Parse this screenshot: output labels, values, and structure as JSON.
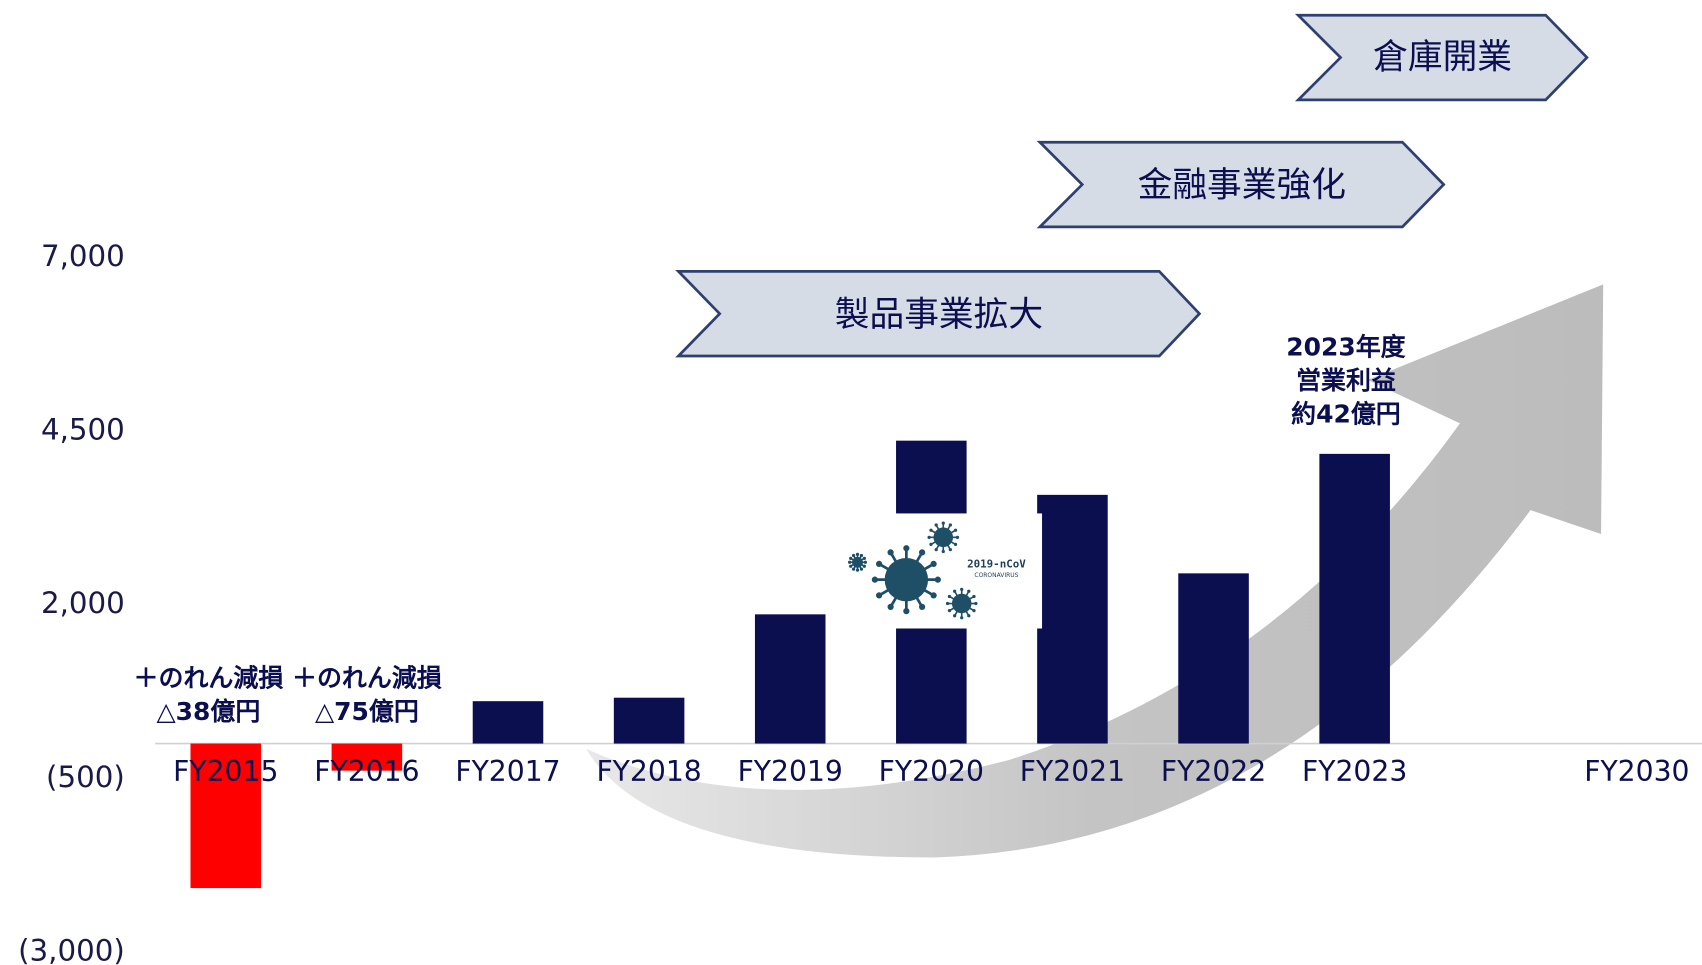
{
  "chart_data": {
    "type": "bar",
    "categories": [
      "FY2015",
      "FY2016",
      "FY2017",
      "FY2018",
      "FY2019",
      "FY2020",
      "FY2021",
      "FY2022",
      "FY2023",
      null,
      "FY2030"
    ],
    "values": [
      -2080,
      -390,
      610,
      660,
      1860,
      4360,
      3580,
      2450,
      4170,
      null,
      null
    ],
    "color": "#0b0f4f",
    "negative_color": "#ff0000",
    "ylim": [
      -3000,
      7000
    ],
    "yticks": [
      {
        "value": -3000,
        "label": "(3,000)"
      },
      {
        "value": -500,
        "label": "(500)"
      },
      {
        "value": 2000,
        "label": "2,000"
      },
      {
        "value": 4500,
        "label": "4,500"
      },
      {
        "value": 7000,
        "label": "7,000"
      }
    ],
    "annotations": [
      [
        "＋のれん減損",
        "△38億円"
      ],
      [
        "＋のれん減損",
        "△75億円"
      ],
      [
        "2023年度",
        "営業利益",
        "約42億円"
      ]
    ],
    "phases": [
      "製品事業拡大",
      "金融事業強化",
      "倉庫開業"
    ],
    "virus_label": [
      "2019-nCoV",
      "CORONAVIRUS"
    ]
  }
}
